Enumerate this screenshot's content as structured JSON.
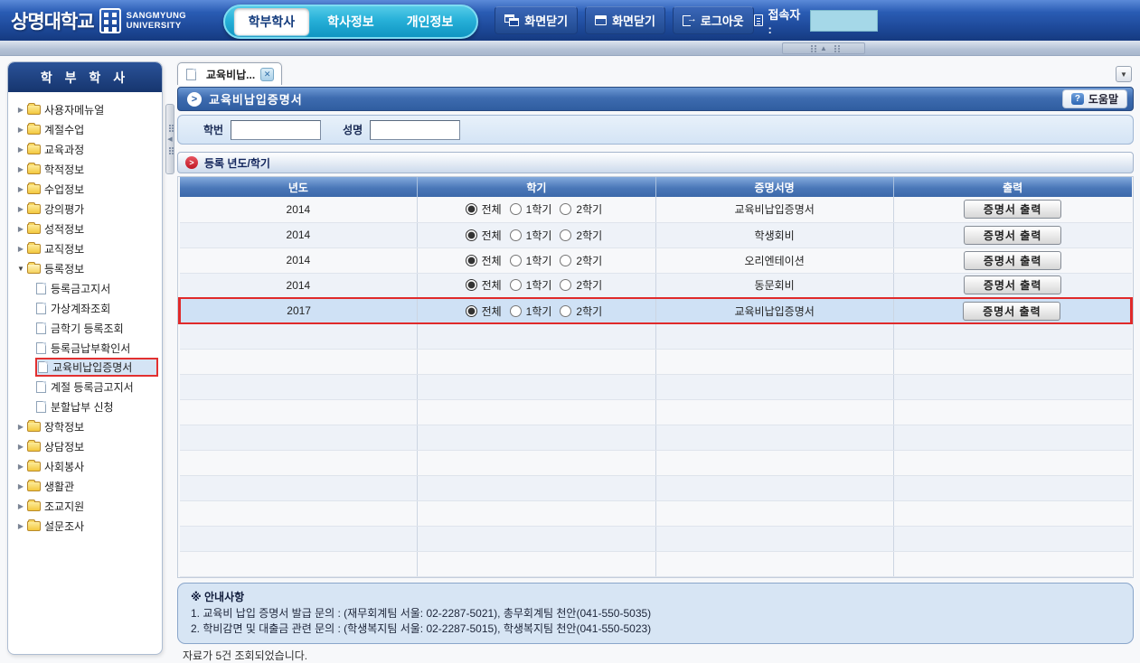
{
  "header": {
    "logo_kr": "상명대학교",
    "logo_en_line1": "SANGMYUNG",
    "logo_en_line2": "UNIVERSITY",
    "tabs": [
      {
        "label": "학부학사",
        "active": true
      },
      {
        "label": "학사정보",
        "active": false
      },
      {
        "label": "개인정보",
        "active": false
      }
    ],
    "actions": [
      {
        "label": "화면닫기",
        "icon": "windows-cascade-icon"
      },
      {
        "label": "화면닫기",
        "icon": "window-icon"
      },
      {
        "label": "로그아웃",
        "icon": "logout-icon"
      }
    ],
    "session_label": "접속자 :"
  },
  "sidebar": {
    "title": "학 부 학 사",
    "items": [
      {
        "label": "사용자메뉴얼",
        "type": "folder"
      },
      {
        "label": "계절수업",
        "type": "folder"
      },
      {
        "label": "교육과정",
        "type": "folder"
      },
      {
        "label": "학적정보",
        "type": "folder"
      },
      {
        "label": "수업정보",
        "type": "folder"
      },
      {
        "label": "강의평가",
        "type": "folder"
      },
      {
        "label": "성적정보",
        "type": "folder"
      },
      {
        "label": "교직정보",
        "type": "folder"
      },
      {
        "label": "등록정보",
        "type": "folder-open"
      },
      {
        "label": "등록금고지서",
        "type": "doc"
      },
      {
        "label": "가상계좌조회",
        "type": "doc"
      },
      {
        "label": "금학기 등록조회",
        "type": "doc"
      },
      {
        "label": "등록금납부확인서",
        "type": "doc"
      },
      {
        "label": "교육비납입증명서",
        "type": "doc",
        "selected": true
      },
      {
        "label": "계절 등록금고지서",
        "type": "doc"
      },
      {
        "label": "분할납부 신청",
        "type": "doc"
      }
    ],
    "items_after": [
      {
        "label": "장학정보",
        "type": "folder"
      },
      {
        "label": "상담정보",
        "type": "folder"
      },
      {
        "label": "사회봉사",
        "type": "folder"
      },
      {
        "label": "생활관",
        "type": "folder"
      },
      {
        "label": "조교지원",
        "type": "folder"
      },
      {
        "label": "설문조사",
        "type": "folder"
      }
    ]
  },
  "content": {
    "doc_tab_label": "교육비납...",
    "page_title": "교육비납입증명서",
    "help_label": "도움말",
    "search": {
      "student_id_label": "학번",
      "student_id_value": "",
      "name_label": "성명",
      "name_value": ""
    },
    "section_title": "등록 년도/학기",
    "table": {
      "columns": [
        "년도",
        "학기",
        "증명서명",
        "출력"
      ],
      "semester_options": [
        "전체",
        "1학기",
        "2학기"
      ],
      "print_button_label": "증명서 출력",
      "rows": [
        {
          "year": "2014",
          "selected_semester": "전체",
          "certificate": "교육비납입증명서",
          "highlighted": false
        },
        {
          "year": "2014",
          "selected_semester": "전체",
          "certificate": "학생회비",
          "highlighted": false
        },
        {
          "year": "2014",
          "selected_semester": "전체",
          "certificate": "오리엔테이션",
          "highlighted": false
        },
        {
          "year": "2014",
          "selected_semester": "전체",
          "certificate": "동문회비",
          "highlighted": false
        },
        {
          "year": "2017",
          "selected_semester": "전체",
          "certificate": "교육비납입증명서",
          "highlighted": true
        }
      ],
      "empty_row_count": 10
    },
    "notice": {
      "title": "※ 안내사항",
      "lines": [
        "1. 교육비 납입 증명서 발급 문의 : (재무회계팀 서울: 02-2287-5021), 총무회계팀 천안(041-550-5035)",
        "2. 학비감면 및 대출금 관련 문의 : (학생복지팀 서울: 02-2287-5015), 학생복지팀 천안(041-550-5023)"
      ]
    },
    "status_text": "자료가 5건 조회되었습니다."
  },
  "icons": {
    "collapsed_arrow": "▶",
    "expanded_arrow": "▼",
    "dropdown_arrow": "▼",
    "collapse_up_arrow": "▲",
    "splitter_left_arrow": "◀",
    "close_x": "✕",
    "forward_arrow": ">",
    "question_mark": "?",
    "logout_arrow": "→"
  },
  "colors": {
    "header_blue": "#1d4898",
    "tab_cyan": "#27b0d8",
    "sidebar_navy": "#16356e",
    "title_bar_blue": "#3e6cb0",
    "highlight_red": "#e02a2a",
    "row_alt": "#eef2f8",
    "row_selected": "#cfe1f5",
    "notice_bg": "#d7e5f4"
  }
}
